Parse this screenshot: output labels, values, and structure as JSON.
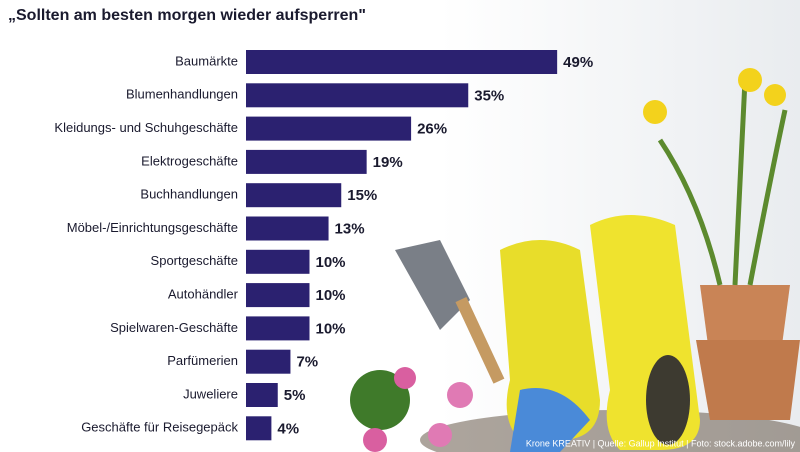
{
  "chart_data": {
    "type": "bar",
    "orientation": "horizontal",
    "title": "„Sollten am besten morgen wieder aufsperren\"",
    "categories": [
      "Baumärkte",
      "Blumenhandlungen",
      "Kleidungs- und Schuhgeschäfte",
      "Elektrogeschäfte",
      "Buchhandlungen",
      "Möbel-/Einrichtungsgeschäfte",
      "Sportgeschäfte",
      "Autohändler",
      "Spielwaren-Geschäfte",
      "Parfümerien",
      "Juweliere",
      "Geschäfte für Reisegepäck"
    ],
    "values": [
      49,
      35,
      26,
      19,
      15,
      13,
      10,
      10,
      10,
      7,
      5,
      4
    ],
    "value_labels": [
      "49%",
      "35%",
      "26%",
      "19%",
      "15%",
      "13%",
      "10%",
      "10%",
      "10%",
      "7%",
      "5%",
      "4%"
    ],
    "color": "#2b2170",
    "source": "Krone KREATIV | Quelle: Gallup Institut | Foto: stock.adobe.com/lily"
  }
}
